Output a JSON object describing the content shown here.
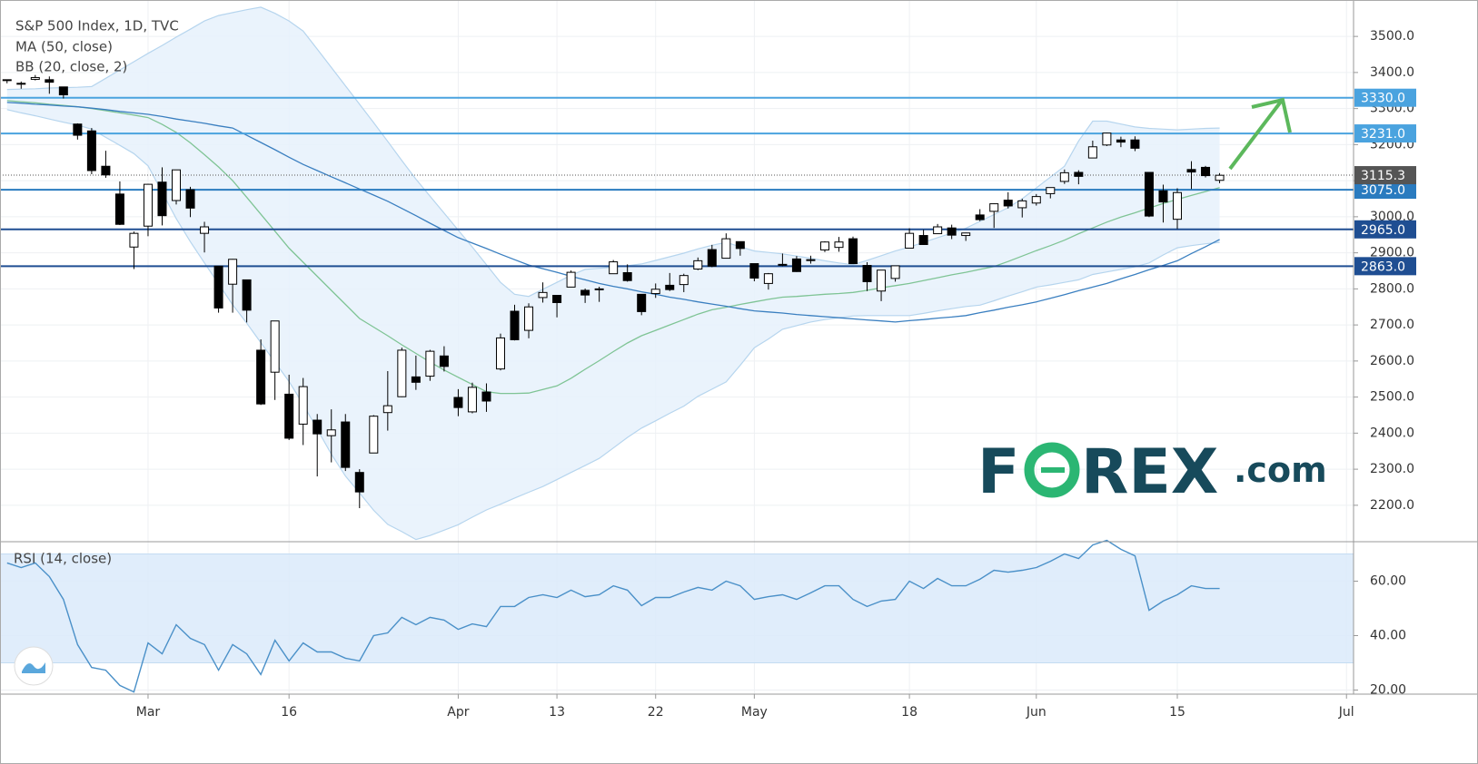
{
  "chart_data": {
    "type": "candlestick",
    "title": "S&P 500 Index, 1D, TVC",
    "up_color": "#ffffff",
    "down_color": "#000000",
    "categories": [
      null,
      null,
      null,
      null,
      null,
      null,
      null,
      null,
      null,
      null,
      "Mar",
      null,
      null,
      null,
      null,
      null,
      null,
      null,
      null,
      null,
      "16",
      null,
      null,
      null,
      null,
      null,
      null,
      null,
      null,
      null,
      null,
      null,
      "Apr",
      null,
      null,
      null,
      null,
      null,
      null,
      "13",
      null,
      null,
      null,
      null,
      null,
      null,
      "22",
      null,
      null,
      null,
      null,
      null,
      null,
      "May",
      null,
      null,
      null,
      null,
      null,
      null,
      null,
      null,
      null,
      null,
      "18",
      null,
      null,
      null,
      null,
      null,
      null,
      null,
      null,
      "Jun",
      null,
      null,
      null,
      null,
      null,
      null,
      null,
      null,
      null,
      "15",
      null,
      null,
      null,
      null,
      null,
      null,
      null,
      null,
      null,
      null,
      null,
      "Jul"
    ],
    "open": [
      3378,
      3369,
      3381,
      3380,
      3360,
      3257,
      3238,
      3140,
      3063,
      2916,
      2974,
      3096,
      3045,
      3075,
      2954,
      2863,
      2813,
      2825,
      2630,
      2569,
      2508,
      2425,
      2436,
      2393,
      2431,
      2291,
      2345,
      2457,
      2501,
      2556,
      2558,
      2614,
      2499,
      2459,
      2514,
      2578,
      2738,
      2685,
      2776,
      2782,
      2805,
      2796,
      2799,
      2842,
      2845,
      2785,
      2787,
      2810,
      2812,
      2855,
      2909,
      2885,
      2931,
      2870,
      2815,
      2868,
      2883,
      2879,
      2908,
      2915,
      2939,
      2865,
      2794,
      2829,
      2913,
      2948,
      2953,
      2969,
      2948,
      3005,
      3015,
      3046,
      3025,
      3038,
      3064,
      3098,
      3123,
      3163,
      3199,
      3213,
      3213,
      3123,
      3072,
      2993,
      3131,
      3137,
      3101,
      null,
      null,
      null,
      null,
      null,
      null,
      null,
      null,
      null
    ],
    "high": [
      3380,
      3375,
      3393,
      3389,
      3360,
      3259,
      3246,
      3183,
      3098,
      2959,
      3091,
      3137,
      3130,
      3083,
      2986,
      2863,
      2883,
      2825,
      2660,
      2711,
      2562,
      2553,
      2453,
      2466,
      2453,
      2300,
      2450,
      2572,
      2637,
      2615,
      2631,
      2641,
      2522,
      2540,
      2538,
      2676,
      2756,
      2760,
      2818,
      2782,
      2851,
      2801,
      2806,
      2880,
      2868,
      2785,
      2815,
      2844,
      2842,
      2887,
      2922,
      2954,
      2931,
      2870,
      2844,
      2898,
      2891,
      2892,
      2932,
      2944,
      2945,
      2874,
      2852,
      2865,
      2968,
      2964,
      2980,
      2978,
      2956,
      3021,
      3037,
      3068,
      3050,
      3063,
      3081,
      3131,
      3129,
      3211,
      3233,
      3222,
      3223,
      3123,
      3089,
      3079,
      3154,
      3141,
      3121,
      null,
      null,
      null,
      null,
      null,
      null,
      null,
      null,
      null
    ],
    "low": [
      3370,
      3355,
      3378,
      3341,
      3328,
      3214,
      3118,
      3108,
      2977,
      2855,
      2946,
      2976,
      3034,
      2999,
      2901,
      2734,
      2734,
      2707,
      2478,
      2492,
      2381,
      2367,
      2280,
      2319,
      2295,
      2192,
      2345,
      2407,
      2500,
      2520,
      2545,
      2571,
      2447,
      2455,
      2459,
      2574,
      2657,
      2663,
      2762,
      2721,
      2805,
      2761,
      2764,
      2842,
      2820,
      2727,
      2775,
      2794,
      2791,
      2852,
      2860,
      2885,
      2892,
      2821,
      2798,
      2863,
      2847,
      2870,
      2902,
      2903,
      2869,
      2794,
      2766,
      2820,
      2913,
      2922,
      2953,
      2938,
      2933,
      2988,
      2969,
      3023,
      2998,
      3031,
      3051,
      3091,
      3090,
      3163,
      3196,
      3193,
      3182,
      2999,
      2984,
      2966,
      3077,
      3109,
      3093,
      null,
      null,
      null,
      null,
      null,
      null,
      null,
      null,
      null
    ],
    "close": [
      3380,
      3370,
      3386,
      3373,
      3338,
      3226,
      3128,
      3116,
      2979,
      2954,
      3090,
      3003,
      3130,
      3024,
      2972,
      2747,
      2882,
      2741,
      2481,
      2711,
      2386,
      2529,
      2398,
      2409,
      2305,
      2237,
      2447,
      2476,
      2630,
      2541,
      2627,
      2585,
      2471,
      2527,
      2489,
      2664,
      2659,
      2750,
      2790,
      2762,
      2846,
      2783,
      2800,
      2875,
      2823,
      2737,
      2799,
      2798,
      2837,
      2878,
      2863,
      2939,
      2912,
      2830,
      2842,
      2868,
      2848,
      2881,
      2930,
      2930,
      2870,
      2820,
      2852,
      2864,
      2954,
      2923,
      2972,
      2949,
      2955,
      2992,
      3036,
      3030,
      3044,
      3056,
      3081,
      3122,
      3112,
      3194,
      3232,
      3207,
      3190,
      3002,
      3041,
      3067,
      3124,
      3114,
      3115,
      null,
      null,
      null,
      null,
      null,
      null,
      null,
      null,
      null
    ],
    "ma": {
      "name": "MA (50, close)",
      "color": "#3a7fc0",
      "values": [
        3317,
        3315,
        3312,
        3310,
        3307,
        3305,
        3301,
        3297,
        3292,
        3288,
        3284,
        3278,
        3271,
        3265,
        3259,
        3252,
        3246,
        3226,
        3206,
        3186,
        3165,
        3145,
        3128,
        3111,
        3094,
        3077,
        3060,
        3043,
        3023,
        3003,
        2982,
        2962,
        2942,
        2927,
        2912,
        2896,
        2881,
        2866,
        2856,
        2846,
        2835,
        2825,
        2815,
        2807,
        2800,
        2792,
        2785,
        2777,
        2771,
        2764,
        2758,
        2752,
        2745,
        2739,
        2736,
        2733,
        2729,
        2726,
        2723,
        2720,
        2717,
        2714,
        2711,
        2708,
        2712,
        2715,
        2719,
        2722,
        2726,
        2734,
        2741,
        2749,
        2756,
        2764,
        2774,
        2784,
        2795,
        2805,
        2815,
        2828,
        2840,
        2853,
        2865,
        2878,
        2898,
        2917,
        2937,
        null,
        null,
        null,
        null,
        null,
        null,
        null,
        null,
        null
      ]
    },
    "bb": {
      "name": "BB (20, close, 2)",
      "color": "#7fc495",
      "band_color": "#b6d5ee",
      "fill": "#e6f1fb",
      "basis": [
        3322,
        3319,
        3316,
        3312,
        3309,
        3305,
        3300,
        3294,
        3288,
        3282,
        3275,
        3256,
        3234,
        3205,
        3172,
        3138,
        3100,
        3054,
        3007,
        2960,
        2913,
        2874,
        2835,
        2796,
        2757,
        2718,
        2694,
        2670,
        2645,
        2621,
        2597,
        2575,
        2555,
        2535,
        2515,
        2510,
        2510,
        2511,
        2521,
        2531,
        2552,
        2577,
        2601,
        2626,
        2650,
        2670,
        2685,
        2700,
        2715,
        2730,
        2742,
        2749,
        2757,
        2764,
        2771,
        2777,
        2779,
        2782,
        2785,
        2787,
        2790,
        2796,
        2803,
        2809,
        2815,
        2823,
        2831,
        2839,
        2846,
        2854,
        2862,
        2876,
        2891,
        2906,
        2920,
        2935,
        2953,
        2969,
        2985,
        2999,
        3011,
        3024,
        3037,
        3048,
        3059,
        3070,
        3081,
        null,
        null,
        null,
        null,
        null,
        null,
        null,
        null,
        null
      ],
      "upper": [
        3353,
        3354,
        3355,
        3357,
        3358,
        3359,
        3361,
        3384,
        3407,
        3430,
        3453,
        3475,
        3498,
        3520,
        3543,
        3558,
        3566,
        3574,
        3581,
        3564,
        3543,
        3515,
        3465,
        3414,
        3363,
        3312,
        3261,
        3209,
        3156,
        3104,
        3057,
        3010,
        2963,
        2916,
        2867,
        2818,
        2785,
        2779,
        2799,
        2818,
        2838,
        2854,
        2857,
        2860,
        2864,
        2869,
        2879,
        2889,
        2899,
        2911,
        2921,
        2929,
        2917,
        2905,
        2901,
        2897,
        2891,
        2885,
        2878,
        2872,
        2867,
        2879,
        2892,
        2905,
        2916,
        2929,
        2942,
        2955,
        2968,
        2987,
        3006,
        3025,
        3050,
        3080,
        3110,
        3140,
        3210,
        3265,
        3265,
        3257,
        3249,
        3245,
        3243,
        3241,
        3243,
        3245,
        3246,
        null,
        null,
        null,
        null,
        null,
        null,
        null,
        null,
        null
      ],
      "lower": [
        3297,
        3288,
        3280,
        3271,
        3262,
        3254,
        3243,
        3220,
        3198,
        3175,
        3141,
        3068,
        2995,
        2931,
        2872,
        2814,
        2756,
        2705,
        2651,
        2597,
        2543,
        2480,
        2411,
        2342,
        2281,
        2234,
        2186,
        2147,
        2127,
        2105,
        2116,
        2131,
        2146,
        2167,
        2187,
        2203,
        2220,
        2236,
        2252,
        2271,
        2291,
        2310,
        2330,
        2359,
        2388,
        2414,
        2434,
        2455,
        2475,
        2502,
        2522,
        2542,
        2588,
        2637,
        2661,
        2688,
        2698,
        2708,
        2715,
        2720,
        2725,
        2726,
        2726,
        2726,
        2726,
        2732,
        2739,
        2745,
        2751,
        2755,
        2767,
        2780,
        2792,
        2805,
        2811,
        2818,
        2825,
        2840,
        2847,
        2854,
        2861,
        2872,
        2894,
        2914,
        2920,
        2925,
        2929,
        null,
        null,
        null,
        null,
        null,
        null,
        null,
        null,
        null
      ]
    },
    "ylim": [
      2099,
      3601
    ],
    "yticks": [
      {
        "value": 2200,
        "label": "2200.0"
      },
      {
        "value": 2300,
        "label": "2300.0"
      },
      {
        "value": 2400,
        "label": "2400.0"
      },
      {
        "value": 2500,
        "label": "2500.0"
      },
      {
        "value": 2600,
        "label": "2600.0"
      },
      {
        "value": 2700,
        "label": "2700.0"
      },
      {
        "value": 2800,
        "label": "2800.0"
      },
      {
        "value": 2900,
        "label": "2900.0"
      },
      {
        "value": 3000,
        "label": "3000.0"
      },
      {
        "value": 3100,
        "label": "3100.0"
      },
      {
        "value": 3200,
        "label": "3200.0"
      },
      {
        "value": 3300,
        "label": "3300.0"
      },
      {
        "value": 3400,
        "label": "3400.0"
      },
      {
        "value": 3500,
        "label": "3500.0"
      }
    ],
    "levels": [
      {
        "value": 3330,
        "label": "3330.0",
        "color": "#4aa3df"
      },
      {
        "value": 3231,
        "label": "3231.0",
        "color": "#4aa3df"
      },
      {
        "value": 3075,
        "label": "3075.0",
        "color": "#2a7bbf"
      },
      {
        "value": 2965,
        "label": "2965.0",
        "color": "#1f4e92"
      },
      {
        "value": 2863,
        "label": "2863.0",
        "color": "#1f4e92"
      }
    ],
    "last_price": 3115.3,
    "grid": true,
    "rsi": {
      "name": "RSI (14, close)",
      "color": "#4a90c8",
      "band_fill": "#dbeafa",
      "band": [
        30,
        70
      ],
      "values": [
        66.7,
        65,
        66.7,
        61.7,
        53.3,
        36.7,
        28.3,
        27.3,
        21.7,
        19.3,
        37.3,
        33.3,
        44,
        39,
        36.7,
        27.3,
        36.7,
        33.3,
        25.7,
        38.3,
        30.7,
        37.3,
        34,
        34,
        31.7,
        30.7,
        40,
        41,
        46.7,
        44,
        46.7,
        45.7,
        42.3,
        44.3,
        43.3,
        50.7,
        50.7,
        54,
        55,
        54,
        56.7,
        54.3,
        55,
        58.3,
        56.7,
        51,
        54,
        54,
        56,
        57.7,
        56.7,
        60,
        58.3,
        53.3,
        54.3,
        55,
        53.3,
        55.7,
        58.3,
        58.3,
        53.3,
        50.7,
        52.7,
        53.3,
        60,
        57.3,
        61,
        58.3,
        58.3,
        60.7,
        64,
        63.3,
        64,
        65,
        67.3,
        70,
        68.3,
        73.3,
        75,
        71.7,
        69.3,
        49.3,
        52.7,
        55,
        58.3,
        57.3,
        57.3,
        null,
        null,
        null,
        null,
        null,
        null,
        null,
        null,
        null
      ],
      "ylim": [
        18.5,
        74.5
      ],
      "yticks": [
        {
          "value": 20,
          "label": "20.00"
        },
        {
          "value": 40,
          "label": "40.00"
        },
        {
          "value": 60,
          "label": "60.00"
        }
      ]
    },
    "logo": [
      "F",
      "O",
      "REX",
      ".com"
    ]
  }
}
